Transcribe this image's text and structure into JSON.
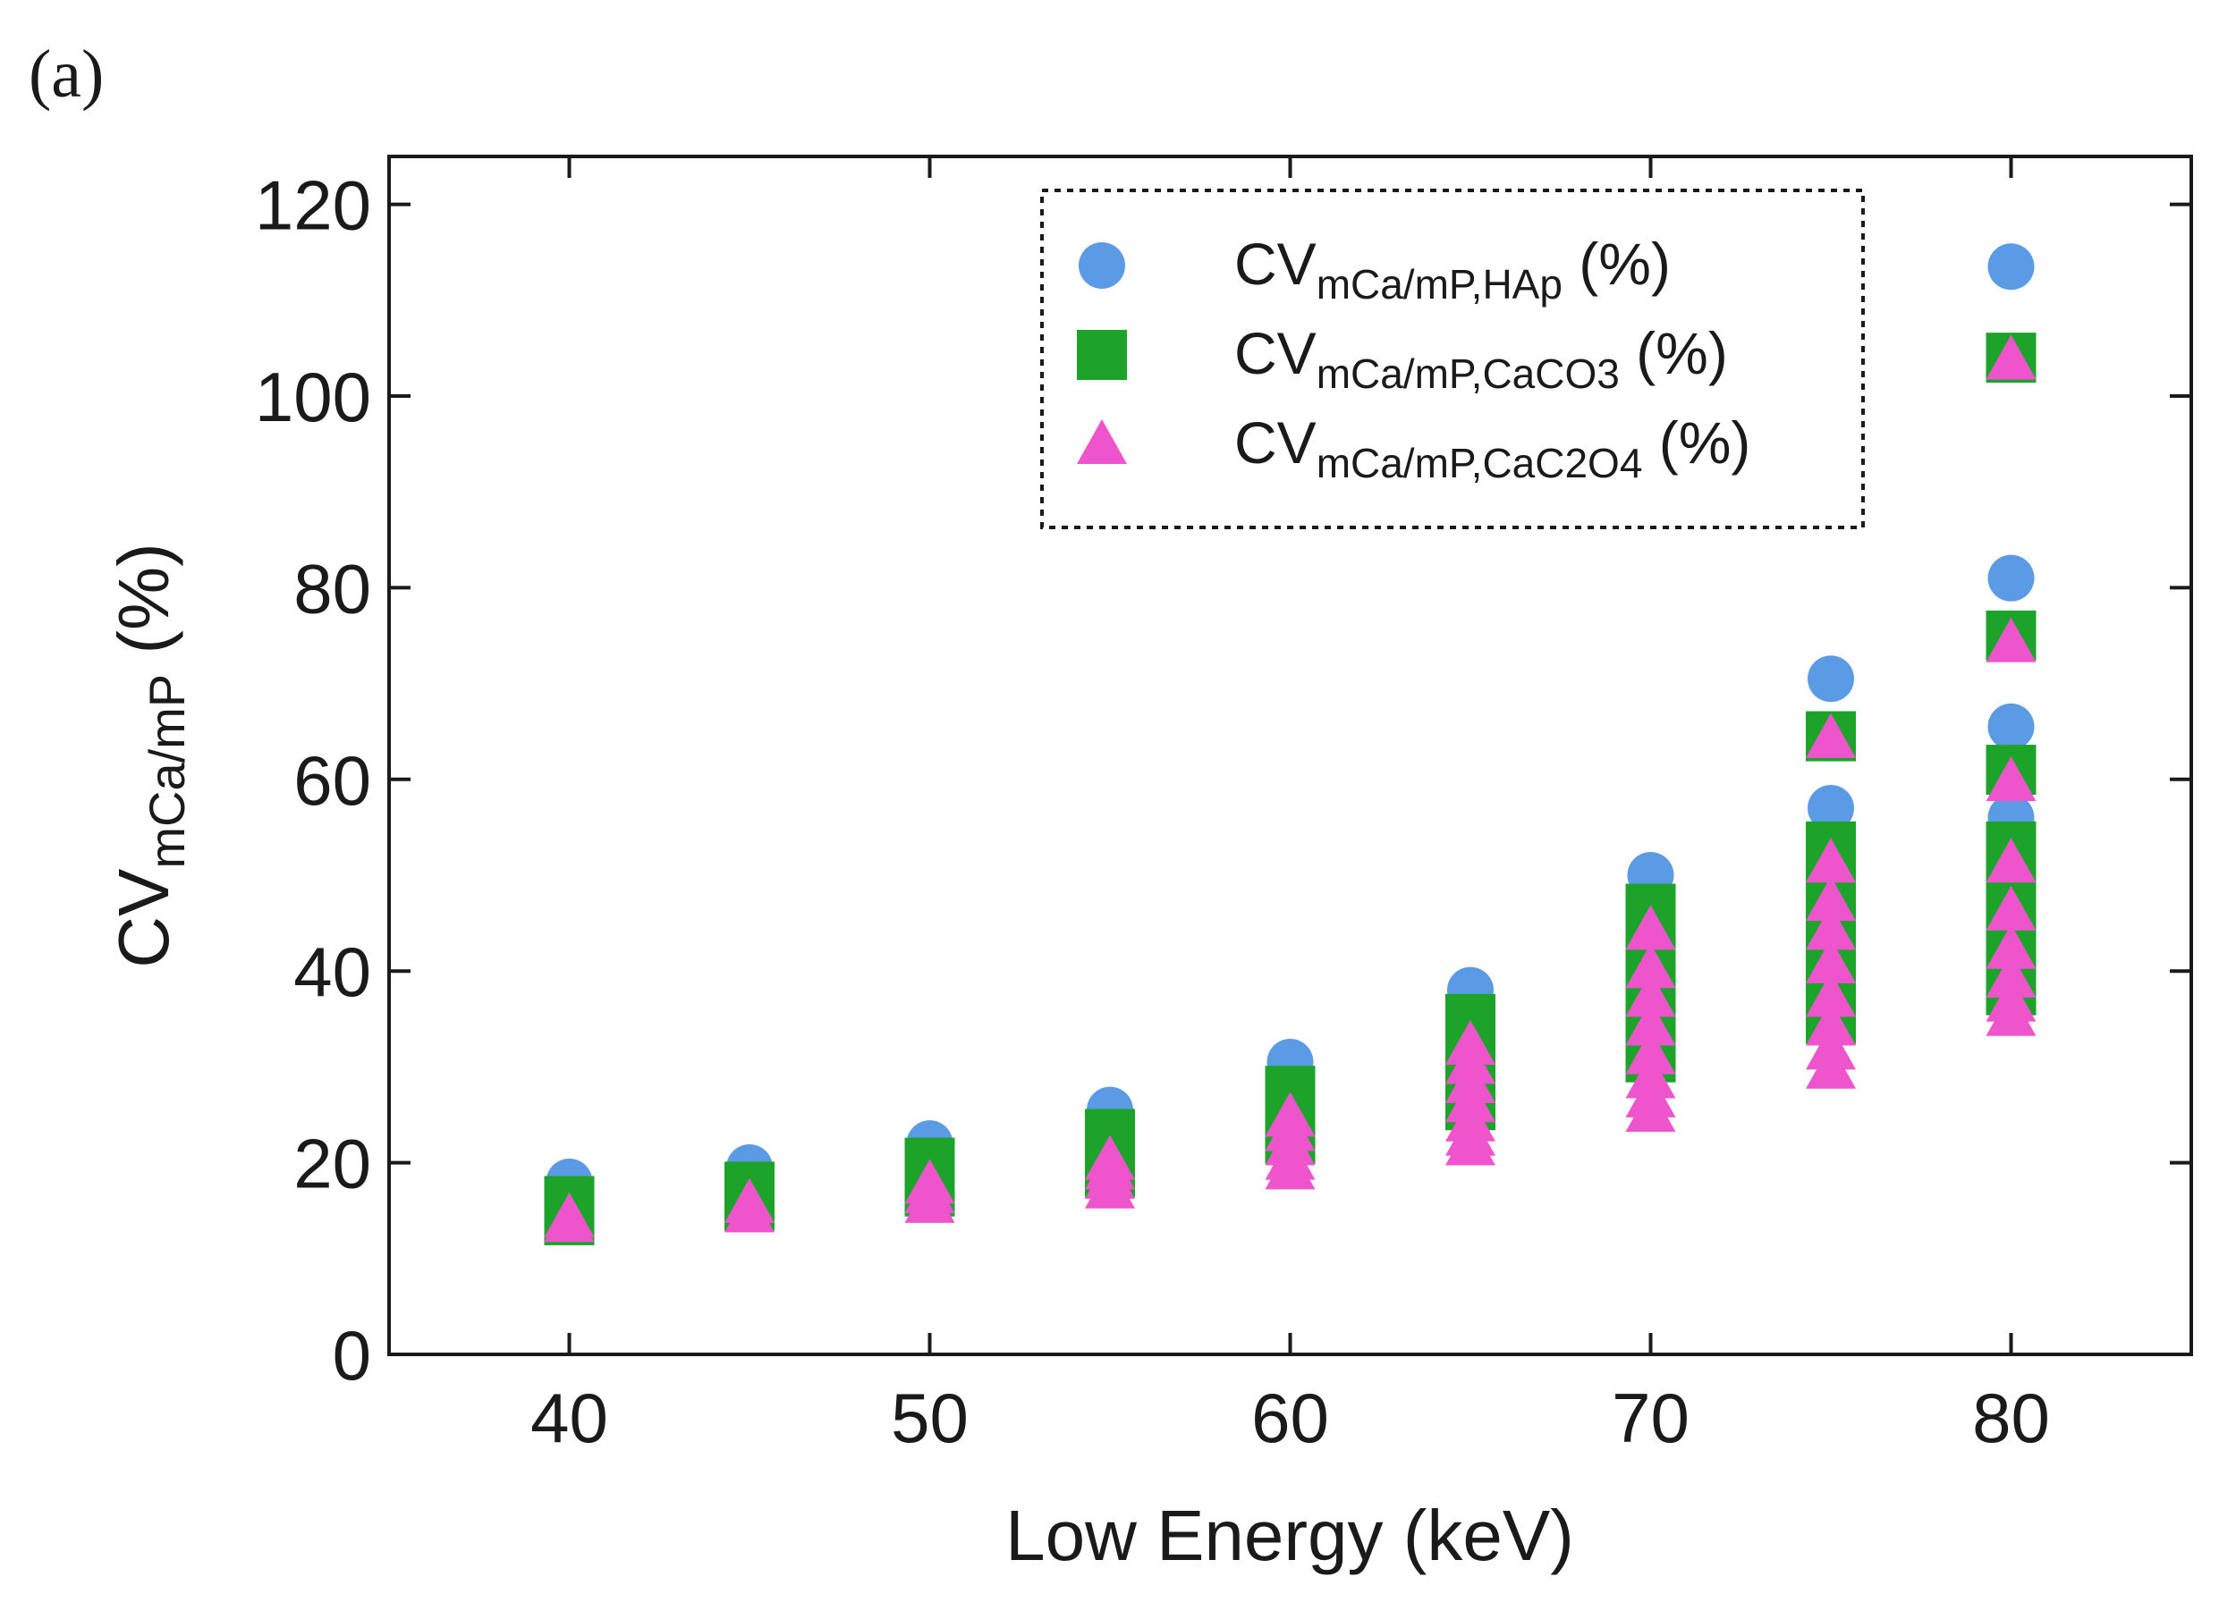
{
  "panel_label": "(a)",
  "chart_data": {
    "type": "scatter",
    "title": "",
    "xlabel": "Low Energy (keV)",
    "ylabel": {
      "main": "CV",
      "sub": "mCa/mP",
      "suffix": " (%)"
    },
    "xlim": [
      35,
      85
    ],
    "ylim": [
      0,
      125
    ],
    "xticks": [
      40,
      50,
      60,
      70,
      80
    ],
    "yticks": [
      0,
      20,
      40,
      60,
      80,
      100,
      120
    ],
    "grid": false,
    "legend_position": "top-center",
    "series": [
      {
        "name": "CVmCa/mP,HAp (%)",
        "legend": {
          "main": "CV",
          "sub": "mCa/mP,HAp",
          "suffix": " (%)"
        },
        "marker": "circle",
        "color": "#5b9be6",
        "points": [
          [
            40,
            18
          ],
          [
            40,
            17
          ],
          [
            40,
            16
          ],
          [
            45,
            19.5
          ],
          [
            45,
            18.5
          ],
          [
            45,
            17.5
          ],
          [
            50,
            22
          ],
          [
            50,
            21
          ],
          [
            50,
            20
          ],
          [
            50,
            19
          ],
          [
            55,
            25.5
          ],
          [
            55,
            24
          ],
          [
            55,
            22.5
          ],
          [
            55,
            21
          ],
          [
            60,
            30.5
          ],
          [
            60,
            28.5
          ],
          [
            60,
            26.5
          ],
          [
            60,
            25
          ],
          [
            65,
            38
          ],
          [
            65,
            35.5
          ],
          [
            65,
            33
          ],
          [
            65,
            31
          ],
          [
            65,
            29
          ],
          [
            70,
            50
          ],
          [
            70,
            46.5
          ],
          [
            70,
            44
          ],
          [
            70,
            41
          ],
          [
            70,
            38
          ],
          [
            70,
            35
          ],
          [
            75,
            70.5
          ],
          [
            75,
            57
          ],
          [
            75,
            53
          ],
          [
            75,
            49
          ],
          [
            75,
            45
          ],
          [
            75,
            41
          ],
          [
            75,
            38
          ],
          [
            80,
            113.5
          ],
          [
            80,
            81
          ],
          [
            80,
            65.5
          ],
          [
            80,
            56
          ],
          [
            80,
            52
          ],
          [
            80,
            48
          ],
          [
            80,
            45
          ]
        ]
      },
      {
        "name": "CVmCa/mP,CaCO3 (%)",
        "legend": {
          "main": "CV",
          "sub": "mCa/mP,CaCO3",
          "suffix": " (%)"
        },
        "marker": "square",
        "color": "#1ea32a",
        "points": [
          [
            40,
            16
          ],
          [
            40,
            15
          ],
          [
            40,
            14
          ],
          [
            45,
            17.5
          ],
          [
            45,
            16.5
          ],
          [
            45,
            15.5
          ],
          [
            50,
            20
          ],
          [
            50,
            19
          ],
          [
            50,
            18
          ],
          [
            50,
            17
          ],
          [
            55,
            23
          ],
          [
            55,
            21.5
          ],
          [
            55,
            20
          ],
          [
            55,
            19
          ],
          [
            60,
            27.5
          ],
          [
            60,
            25.5
          ],
          [
            60,
            24
          ],
          [
            60,
            22.5
          ],
          [
            65,
            35
          ],
          [
            65,
            32.5
          ],
          [
            65,
            30
          ],
          [
            65,
            28
          ],
          [
            65,
            26
          ],
          [
            70,
            46.5
          ],
          [
            70,
            43
          ],
          [
            70,
            40
          ],
          [
            70,
            37
          ],
          [
            70,
            34
          ],
          [
            70,
            31
          ],
          [
            75,
            64.5
          ],
          [
            75,
            53
          ],
          [
            75,
            49
          ],
          [
            75,
            45.5
          ],
          [
            75,
            42
          ],
          [
            75,
            38
          ],
          [
            75,
            35
          ],
          [
            80,
            104
          ],
          [
            80,
            75
          ],
          [
            80,
            61
          ],
          [
            80,
            53
          ],
          [
            80,
            49
          ],
          [
            80,
            45
          ],
          [
            80,
            41
          ],
          [
            80,
            38
          ]
        ]
      },
      {
        "name": "CVmCa/mP,CaC2O4 (%)",
        "legend": {
          "main": "CV",
          "sub": "mCa/mP,CaC2O4",
          "suffix": " (%)"
        },
        "marker": "triangle",
        "color": "#ee55cc",
        "points": [
          [
            40,
            14
          ],
          [
            40,
            13.5
          ],
          [
            45,
            15.5
          ],
          [
            45,
            14.5
          ],
          [
            50,
            17.5
          ],
          [
            50,
            16.5
          ],
          [
            50,
            15.5
          ],
          [
            55,
            20
          ],
          [
            55,
            19
          ],
          [
            55,
            18
          ],
          [
            55,
            17
          ],
          [
            60,
            24.5
          ],
          [
            60,
            23
          ],
          [
            60,
            21.5
          ],
          [
            60,
            20
          ],
          [
            60,
            19
          ],
          [
            65,
            32
          ],
          [
            65,
            30
          ],
          [
            65,
            28
          ],
          [
            65,
            26
          ],
          [
            65,
            24
          ],
          [
            65,
            22.5
          ],
          [
            65,
            21.5
          ],
          [
            70,
            44
          ],
          [
            70,
            40
          ],
          [
            70,
            37
          ],
          [
            70,
            34
          ],
          [
            70,
            31
          ],
          [
            70,
            28.5
          ],
          [
            70,
            26.5
          ],
          [
            70,
            25
          ],
          [
            75,
            64
          ],
          [
            75,
            51
          ],
          [
            75,
            47
          ],
          [
            75,
            44
          ],
          [
            75,
            40.5
          ],
          [
            75,
            37
          ],
          [
            75,
            34
          ],
          [
            75,
            31.5
          ],
          [
            75,
            29.5
          ],
          [
            80,
            103.5
          ],
          [
            80,
            74
          ],
          [
            80,
            59.5
          ],
          [
            80,
            51
          ],
          [
            80,
            46
          ],
          [
            80,
            42
          ],
          [
            80,
            39
          ],
          [
            80,
            36.5
          ],
          [
            80,
            35
          ]
        ]
      }
    ]
  }
}
